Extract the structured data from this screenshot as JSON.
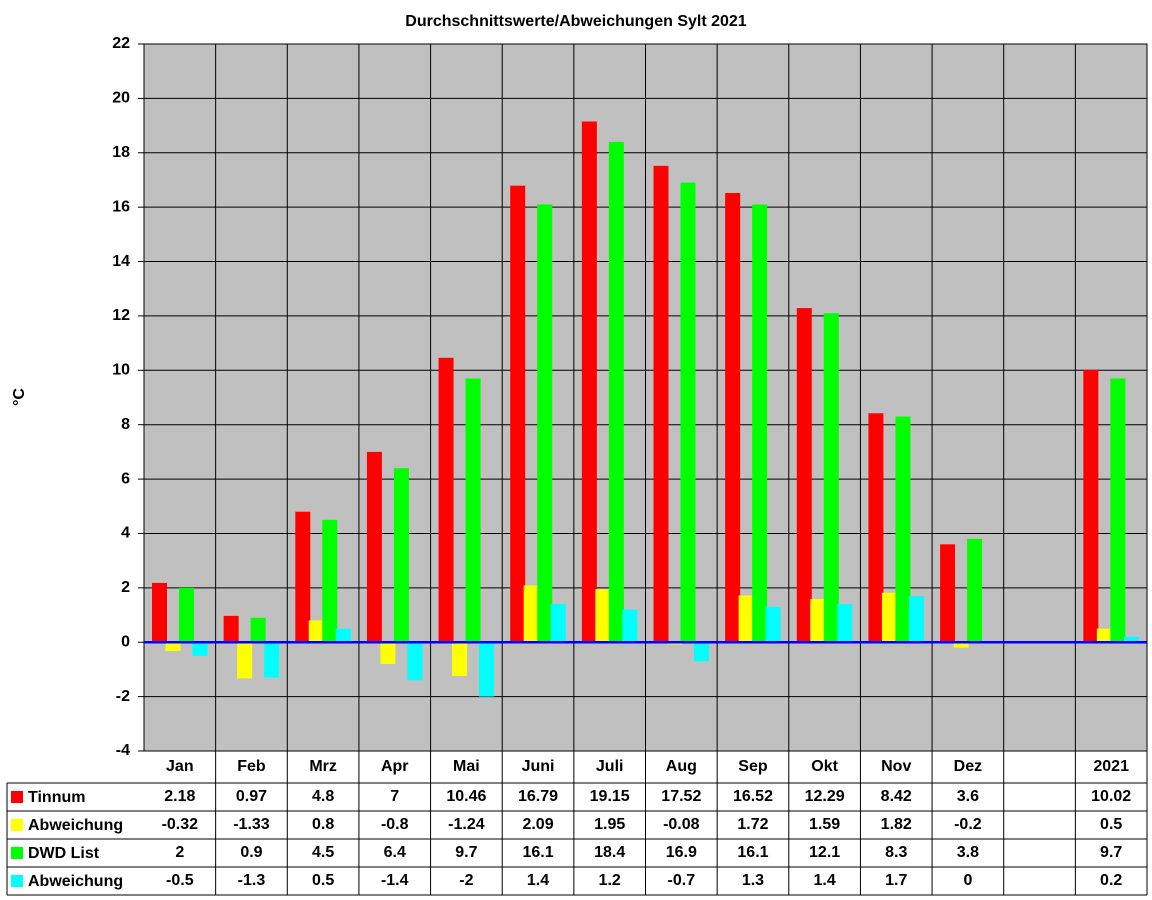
{
  "chart_data": {
    "type": "bar",
    "title": "Durchschnittswerte/Abweichungen Sylt 2021",
    "y_label": "°C",
    "categories": [
      "Jan",
      "Feb",
      "Mrz",
      "Apr",
      "Mai",
      "Juni",
      "Juli",
      "Aug",
      "Sep",
      "Okt",
      "Nov",
      "Dez",
      null,
      "2021"
    ],
    "series": [
      {
        "name": "Tinnum",
        "color": "#ff0000",
        "values": [
          2.18,
          0.97,
          4.8,
          7,
          10.46,
          16.79,
          19.15,
          17.52,
          16.52,
          12.29,
          8.42,
          3.6,
          null,
          10.02
        ]
      },
      {
        "name": "Abweichung",
        "color": "#ffff00",
        "values": [
          -0.32,
          -1.33,
          0.8,
          -0.8,
          -1.24,
          2.09,
          1.95,
          -0.08,
          1.72,
          1.59,
          1.82,
          -0.2,
          null,
          0.5
        ]
      },
      {
        "name": "DWD List",
        "color": "#00ff00",
        "values": [
          2,
          0.9,
          4.5,
          6.4,
          9.7,
          16.1,
          18.4,
          16.9,
          16.1,
          12.1,
          8.3,
          3.8,
          null,
          9.7
        ]
      },
      {
        "name": "Abweichung",
        "color": "#00ffff",
        "values": [
          -0.5,
          -1.3,
          0.5,
          -1.4,
          -2,
          1.4,
          1.2,
          -0.7,
          1.3,
          1.4,
          1.7,
          0,
          null,
          0.2
        ]
      }
    ],
    "ylim": [
      -4,
      22
    ],
    "yticks": [
      -4,
      -2,
      0,
      2,
      4,
      6,
      8,
      10,
      12,
      14,
      16,
      18,
      20,
      22
    ],
    "grid": true,
    "plot_background": "#c0c0c0",
    "zero_line_color": "#0000ff"
  }
}
